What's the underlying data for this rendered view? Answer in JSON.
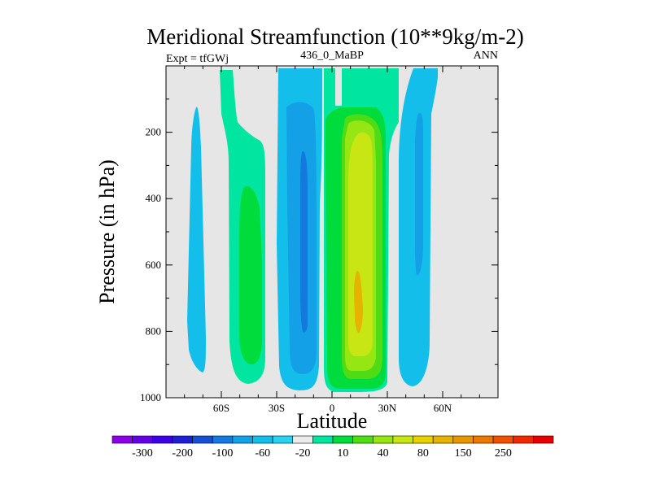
{
  "chart_data": {
    "type": "heatmap",
    "subtype": "filled-contour",
    "title": "Meridional Streamfunction (10**9kg/m-2)",
    "left_string": "Expt = tfGWj",
    "center_string": "436_0_MaBP",
    "right_string": "ANN",
    "xlabel": "Latitude",
    "ylabel": "Pressure (in hPa)",
    "xlim": [
      -90,
      90
    ],
    "ylim": [
      1000,
      0
    ],
    "x_ticks": [
      -60,
      -30,
      0,
      30,
      60
    ],
    "x_tick_labels": [
      "60S",
      "30S",
      "0",
      "30N",
      "60N"
    ],
    "y_ticks": [
      200,
      400,
      600,
      800,
      1000
    ],
    "y_tick_labels": [
      "200",
      "400",
      "600",
      "800",
      "1000"
    ],
    "colorbar": {
      "colors": [
        "#8c00e6",
        "#6400e6",
        "#3c00e6",
        "#1e1ed2",
        "#1450d2",
        "#1478dc",
        "#14a0e6",
        "#14beeb",
        "#28d2f0",
        "#ebebeb",
        "#00e6a0",
        "#00dc3c",
        "#50dc14",
        "#96e614",
        "#c8e614",
        "#e6d200",
        "#e6b400",
        "#e69600",
        "#eb7800",
        "#f05000",
        "#f02800",
        "#e60000"
      ],
      "tick_labels": [
        "-300",
        "-200",
        "-100",
        "-60",
        "-20",
        "10",
        "40",
        "80",
        "150",
        "250"
      ]
    },
    "regions": [
      {
        "feature": "cell 75S-80S",
        "color": "#14beeb",
        "lat_range": [
          -83,
          -75
        ],
        "pressure_range": [
          140,
          920
        ]
      },
      {
        "feature": "cell 45S",
        "color": "#00e6a0",
        "lat_range": [
          -55,
          -35
        ],
        "pressure_range": [
          20,
          960
        ]
      },
      {
        "feature": "cell 45S core",
        "color": "#00dc3c",
        "lat_range": [
          -50,
          -40
        ],
        "pressure_range": [
          370,
          860
        ]
      },
      {
        "feature": "cell 30S edge",
        "color": "#14beeb",
        "lat_range": [
          -30,
          -10
        ],
        "pressure_range": [
          0,
          980
        ]
      },
      {
        "feature": "cell 20S",
        "color": "#14a0e6",
        "lat_range": [
          -25,
          -9
        ],
        "pressure_range": [
          70,
          960
        ]
      },
      {
        "feature": "cell 20S core",
        "color": "#1478dc",
        "lat_range": [
          -18,
          -15
        ],
        "pressure_range": [
          270,
          820
        ]
      },
      {
        "feature": "cell 15N",
        "color": "#00e6a0",
        "lat_range": [
          -3,
          38
        ],
        "pressure_range": [
          0,
          980
        ]
      },
      {
        "feature": "cell 15N",
        "color": "#00dc3c",
        "lat_range": [
          -4,
          30
        ],
        "pressure_range": [
          60,
          980
        ]
      },
      {
        "feature": "cell 15N",
        "color": "#50dc14",
        "lat_range": [
          7,
          26
        ],
        "pressure_range": [
          90,
          960
        ]
      },
      {
        "feature": "cell 15N",
        "color": "#96e614",
        "lat_range": [
          8,
          24
        ],
        "pressure_range": [
          140,
          930
        ]
      },
      {
        "feature": "cell 15N",
        "color": "#c8e614",
        "lat_range": [
          10,
          22
        ],
        "pressure_range": [
          200,
          870
        ]
      },
      {
        "feature": "cell 15N core",
        "color": "#e6b400",
        "lat_range": [
          12,
          16
        ],
        "pressure_range": [
          630,
          820
        ]
      },
      {
        "feature": "cell 45N",
        "color": "#14beeb",
        "lat_range": [
          35,
          58
        ],
        "pressure_range": [
          0,
          960
        ]
      },
      {
        "feature": "cell 45N core",
        "color": "#14a0e6",
        "lat_range": [
          45,
          48
        ],
        "pressure_range": [
          240,
          760
        ]
      }
    ]
  }
}
